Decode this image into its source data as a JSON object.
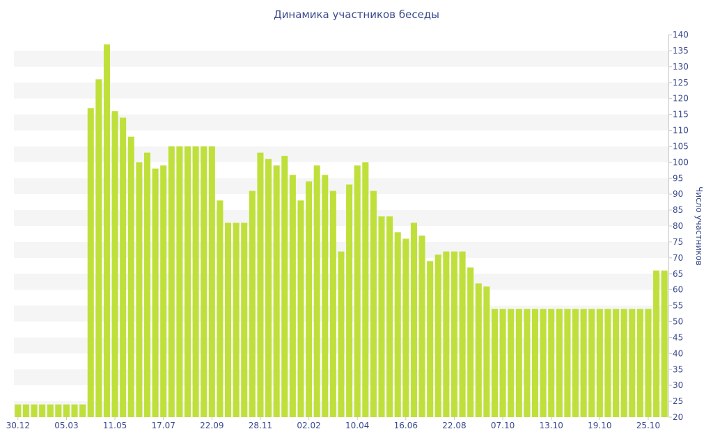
{
  "chart_data": {
    "type": "bar",
    "title": "Динамика участников беседы",
    "ylabel": "Число участников",
    "xlabel": "",
    "ylim": [
      20,
      140
    ],
    "y_ticks": [
      20,
      25,
      30,
      35,
      40,
      45,
      50,
      55,
      60,
      65,
      70,
      75,
      80,
      85,
      90,
      95,
      100,
      105,
      110,
      115,
      120,
      125,
      130,
      135,
      140
    ],
    "x_tick_labels": [
      {
        "label": "30.12",
        "index": 0
      },
      {
        "label": "05.03",
        "index": 6
      },
      {
        "label": "11.05",
        "index": 12
      },
      {
        "label": "17.07",
        "index": 18
      },
      {
        "label": "22.09",
        "index": 24
      },
      {
        "label": "28.11",
        "index": 30
      },
      {
        "label": "02.02",
        "index": 36
      },
      {
        "label": "10.04",
        "index": 42
      },
      {
        "label": "16.06",
        "index": 48
      },
      {
        "label": "22.08",
        "index": 54
      },
      {
        "label": "07.10",
        "index": 60
      },
      {
        "label": "13.10",
        "index": 66
      },
      {
        "label": "19.10",
        "index": 72
      },
      {
        "label": "25.10",
        "index": 78
      }
    ],
    "values": [
      24,
      24,
      24,
      24,
      24,
      24,
      24,
      24,
      24,
      117,
      126,
      137,
      116,
      114,
      108,
      100,
      103,
      98,
      99,
      105,
      105,
      105,
      105,
      105,
      105,
      88,
      81,
      81,
      81,
      91,
      103,
      101,
      99,
      102,
      96,
      88,
      94,
      99,
      96,
      91,
      72,
      93,
      99,
      100,
      91,
      83,
      83,
      78,
      76,
      81,
      77,
      69,
      71,
      72,
      72,
      72,
      67,
      62,
      61,
      54,
      54,
      54,
      54,
      54,
      54,
      54,
      54,
      54,
      54,
      54,
      54,
      54,
      54,
      54,
      54,
      54,
      54,
      54,
      54,
      66,
      66
    ],
    "bar_color": "#bfe03a",
    "grid": "alternating horizontal bands",
    "band_color": "#f5f5f5"
  }
}
